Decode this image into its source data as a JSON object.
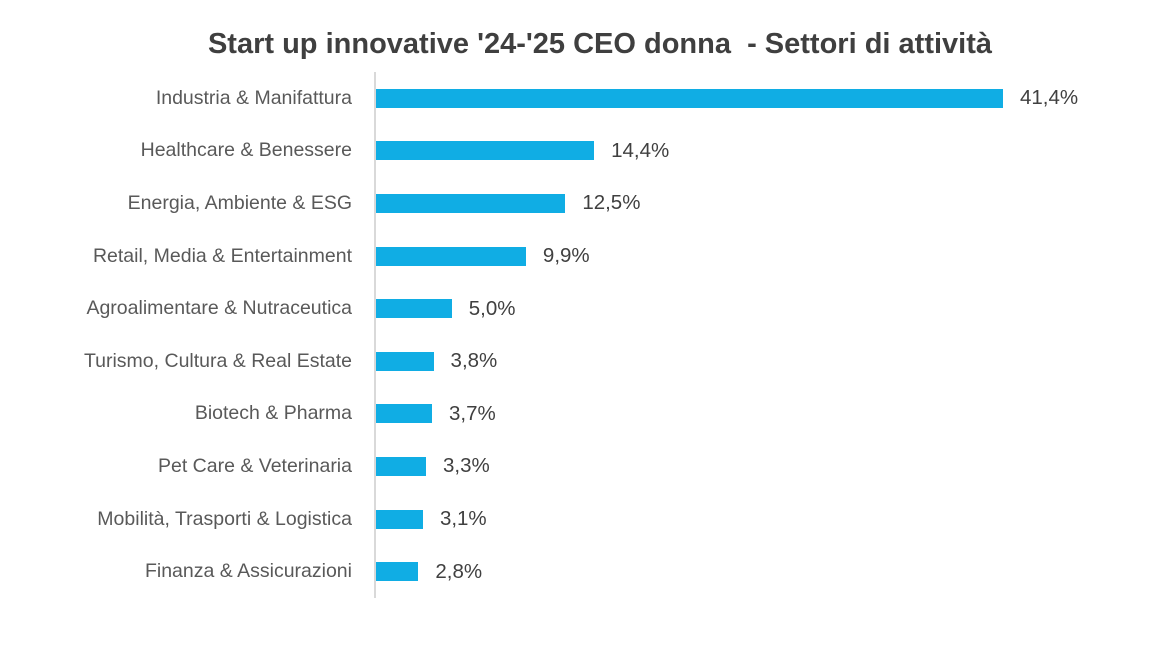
{
  "chart_data": {
    "type": "bar",
    "orientation": "horizontal",
    "title": "Start up innovative '24-'25 CEO donna  - Settori di attività",
    "categories": [
      "Industria & Manifattura",
      "Healthcare & Benessere",
      "Energia, Ambiente & ESG",
      "Retail, Media & Entertainment",
      "Agroalimentare & Nutraceutica",
      "Turismo, Cultura & Real Estate",
      "Biotech & Pharma",
      "Pet Care & Veterinaria",
      "Mobilità, Trasporti & Logistica",
      "Finanza & Assicurazioni"
    ],
    "values": [
      41.4,
      14.4,
      12.5,
      9.9,
      5.0,
      3.8,
      3.7,
      3.3,
      3.1,
      2.8
    ],
    "value_labels": [
      "41,4%",
      "14,4%",
      "12,5%",
      "9,9%",
      "5,0%",
      "3,8%",
      "3,7%",
      "3,3%",
      "3,1%",
      "2,8%"
    ],
    "xlabel": "",
    "ylabel": "",
    "xlim": [
      0,
      45
    ],
    "grid": false,
    "legend": false,
    "bar_color": "#10ade4",
    "axis_line_color": "#d9d9d9",
    "category_label_color": "#595959",
    "value_label_color": "#404040",
    "title_color": "#3f3f3f"
  }
}
